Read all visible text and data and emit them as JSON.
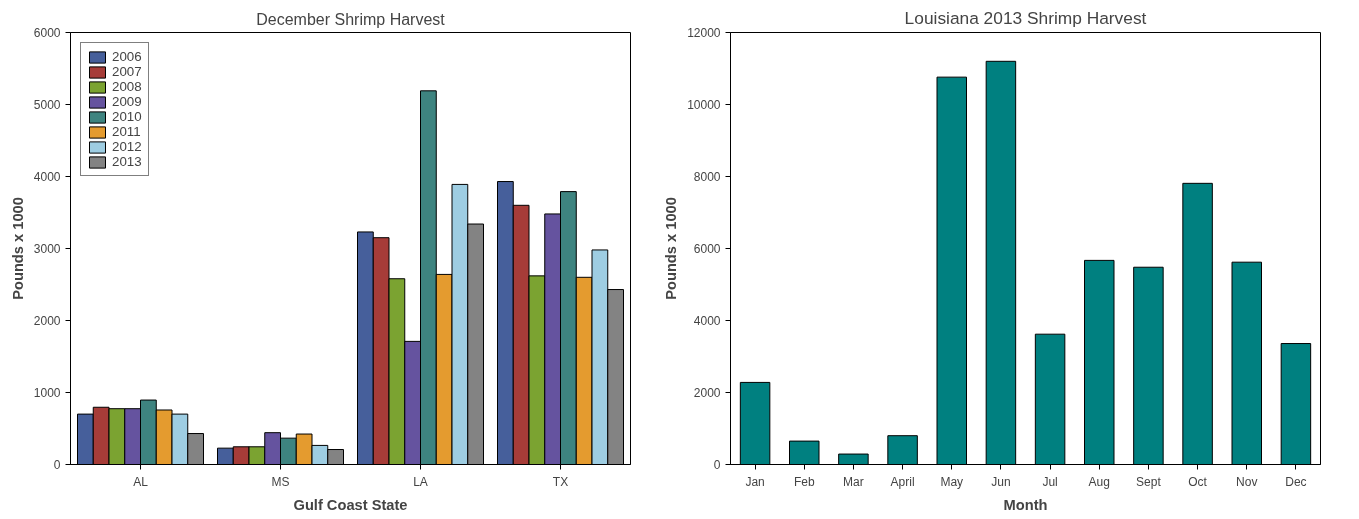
{
  "chart_data": [
    {
      "type": "bar",
      "title": "December Shrimp Harvest",
      "xlabel": "Gulf Coast State",
      "ylabel": "Pounds x 1000",
      "categories": [
        "AL",
        "MS",
        "LA",
        "TX"
      ],
      "series": [
        {
          "name": "2006",
          "color": "#465f9b",
          "values": [
            700,
            227,
            3230,
            3930
          ]
        },
        {
          "name": "2007",
          "color": "#a63c38",
          "values": [
            795,
            246,
            3150,
            3600
          ]
        },
        {
          "name": "2008",
          "color": "#7ba331",
          "values": [
            775,
            246,
            2580,
            2620
          ]
        },
        {
          "name": "2009",
          "color": "#65539f",
          "values": [
            775,
            442,
            1710,
            3480
          ]
        },
        {
          "name": "2010",
          "color": "#3e8480",
          "values": [
            895,
            366,
            5190,
            3790
          ]
        },
        {
          "name": "2011",
          "color": "#e49b2f",
          "values": [
            757,
            423,
            2640,
            2600
          ]
        },
        {
          "name": "2012",
          "color": "#9ecde2",
          "values": [
            700,
            265,
            3890,
            2980
          ]
        },
        {
          "name": "2013",
          "color": "#838383",
          "values": [
            430,
            208,
            3340,
            2430
          ]
        }
      ],
      "ylim": [
        0,
        6000
      ],
      "yticks": [
        0,
        1000,
        2000,
        3000,
        4000,
        5000,
        6000
      ],
      "legend": "top left",
      "grid": false
    },
    {
      "type": "bar",
      "title": "Louisiana 2013 Shrimp Harvest",
      "xlabel": "Month",
      "ylabel": "Pounds x 1000",
      "categories": [
        "Jan",
        "Feb",
        "Mar",
        "April",
        "May",
        "Jun",
        "Jul",
        "Aug",
        "Sept",
        "Oct",
        "Nov",
        "Dec"
      ],
      "series": [
        {
          "color": "#008080",
          "values": [
            2280,
            650,
            290,
            800,
            10760,
            11200,
            3620,
            5670,
            5480,
            7810,
            5620,
            3360
          ]
        }
      ],
      "ylim": [
        0,
        12000
      ],
      "yticks": [
        0,
        2000,
        4000,
        6000,
        8000,
        10000,
        12000
      ],
      "grid": false
    }
  ]
}
